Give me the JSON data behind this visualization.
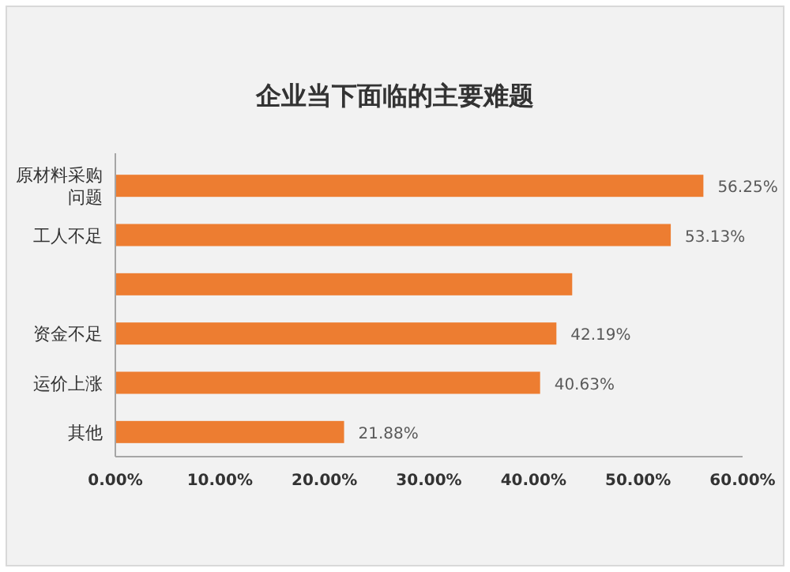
{
  "chart_data": {
    "type": "bar",
    "orientation": "horizontal",
    "title": "企业当下面临的主要难题",
    "categories": [
      "原材料采购问题",
      "工人不足",
      null,
      "资金不足",
      "运价上涨",
      "其他"
    ],
    "values": [
      56.25,
      53.13,
      43.7,
      42.19,
      40.63,
      21.88
    ],
    "value_labels": [
      "56.25%",
      "53.13%",
      null,
      "42.19%",
      "40.63%",
      "21.88%"
    ],
    "color": "#ed7d31",
    "xlim": [
      0,
      60
    ],
    "xticks": [
      {
        "value": 0,
        "label": "0.00%"
      },
      {
        "value": 10,
        "label": "10.00%"
      },
      {
        "value": 20,
        "label": "20.00%"
      },
      {
        "value": 30,
        "label": "30.00%"
      },
      {
        "value": 40,
        "label": "40.00%"
      },
      {
        "value": 50,
        "label": "50.00%"
      },
      {
        "value": 60,
        "label": "60.00%"
      }
    ],
    "grid": false
  }
}
